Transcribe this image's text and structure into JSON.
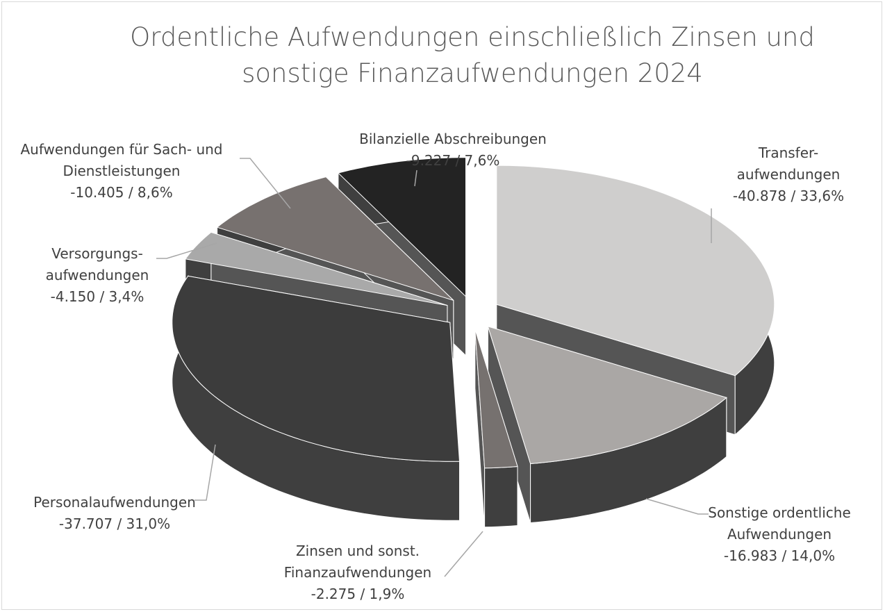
{
  "chart_data": {
    "type": "pie3d",
    "title": "Ordentliche Aufwendungen einschließlich Zinsen und sonstige Finanzaufwendungen 2024",
    "categories": [
      "Transfer-\naufwendungen",
      "Sonstige ordentliche\nAufwendungen",
      "Zinsen und sonst.\nFinanzaufwendungen",
      "Personalaufwendungen",
      "Versorgungs-\naufwendungen",
      "Aufwendungen für Sach- und\nDienstleistungen",
      "Bilanzielle Abschreibungen"
    ],
    "values": [
      33.6,
      14.0,
      1.9,
      31.0,
      3.4,
      8.6,
      7.6
    ],
    "amounts": [
      -40878,
      -16983,
      -2275,
      -37707,
      -4150,
      -10405,
      -9227
    ],
    "value_labels": [
      "-40.878 / 33,6%",
      "-16.983 / 14,0%",
      "-2.275 / 1,9%",
      "-37.707 / 31,0%",
      "-4.150 / 3,4%",
      "-10.405 / 8,6%",
      "-9.227 / 7,6%"
    ],
    "colors": [
      "#cfcecd",
      "#aaa7a5",
      "#76716f",
      "#3c3c3c",
      "#a9a9a9",
      "#77716f",
      "#232323"
    ]
  }
}
